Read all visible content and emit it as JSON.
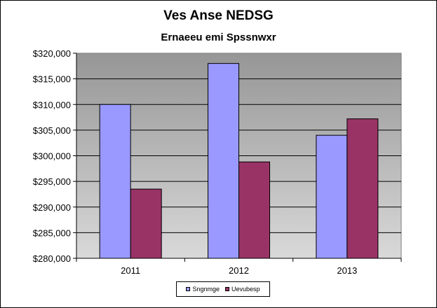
{
  "chart_data": {
    "type": "bar",
    "title": "Ves Anse NEDSG",
    "subtitle": "Ernaeeu emi Spssnwxr",
    "categories": [
      "2011",
      "2012",
      "2013"
    ],
    "series": [
      {
        "name": "Sngnmge",
        "color": "#9999ff",
        "values": [
          310000,
          318000,
          304000
        ]
      },
      {
        "name": "Uevubesp",
        "color": "#993366",
        "values": [
          293500,
          298800,
          307200
        ]
      }
    ],
    "ylim": [
      280000,
      320000
    ],
    "ystep": 5000,
    "ytick_labels": [
      "$280,000",
      "$285,000",
      "$290,000",
      "$295,000",
      "$300,000",
      "$305,000",
      "$310,000",
      "$315,000",
      "$320,000"
    ],
    "grid": true,
    "legend": "bottom"
  }
}
